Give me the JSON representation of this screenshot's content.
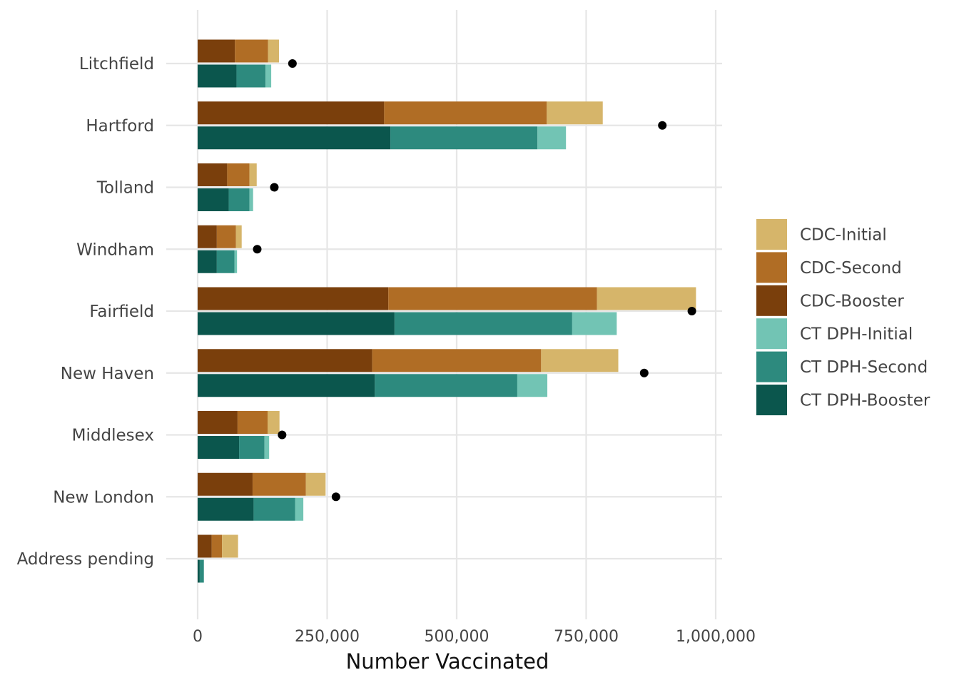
{
  "chart_data": {
    "type": "bar",
    "orientation": "horizontal",
    "stacked": true,
    "title": "",
    "xlabel": "Number Vaccinated",
    "ylabel": "",
    "xlim": [
      0,
      1000000
    ],
    "x_ticks": [
      0,
      250000,
      500000,
      750000,
      1000000
    ],
    "x_tick_labels": [
      "0",
      "250,000",
      "500,000",
      "750,000",
      "1,000,000"
    ],
    "grid": true,
    "legend_position": "right",
    "categories": [
      "Litchfield",
      "Hartford",
      "Tolland",
      "Windham",
      "Fairfield",
      "New Haven",
      "Middlesex",
      "New London",
      "Address pending"
    ],
    "series": [
      {
        "name": "CDC-Booster",
        "color": "#7a3f0c",
        "group": "CDC",
        "values": [
          72000,
          360000,
          57000,
          37000,
          368000,
          337000,
          77000,
          106000,
          27000
        ]
      },
      {
        "name": "CDC-Second",
        "color": "#b06d25",
        "group": "CDC",
        "values": [
          64000,
          314000,
          43000,
          37000,
          403000,
          326000,
          58000,
          103000,
          20000
        ]
      },
      {
        "name": "CDC-Initial",
        "color": "#d6b56a",
        "group": "CDC",
        "values": [
          21000,
          108000,
          14000,
          11000,
          191000,
          149000,
          23000,
          38000,
          31000
        ]
      },
      {
        "name": "CT DPH-Booster",
        "color": "#0b564d",
        "group": "CT DPH",
        "values": [
          75000,
          372000,
          60000,
          37000,
          380000,
          342000,
          80000,
          108000,
          4000
        ]
      },
      {
        "name": "CT DPH-Second",
        "color": "#2d8a7e",
        "group": "CT DPH",
        "values": [
          56000,
          284000,
          40000,
          34000,
          343000,
          275000,
          49000,
          80000,
          8000
        ]
      },
      {
        "name": "CT DPH-Initial",
        "color": "#72c4b4",
        "group": "CT DPH",
        "values": [
          11000,
          55000,
          7000,
          5000,
          86000,
          58000,
          9000,
          16000,
          0
        ]
      }
    ],
    "points": [
      183000,
      897000,
      148000,
      115000,
      954000,
      862000,
      163000,
      267000,
      null
    ],
    "legend": [
      "CDC-Initial",
      "CDC-Second",
      "CDC-Booster",
      "CT DPH-Initial",
      "CT DPH-Second",
      "CT DPH-Booster"
    ]
  }
}
